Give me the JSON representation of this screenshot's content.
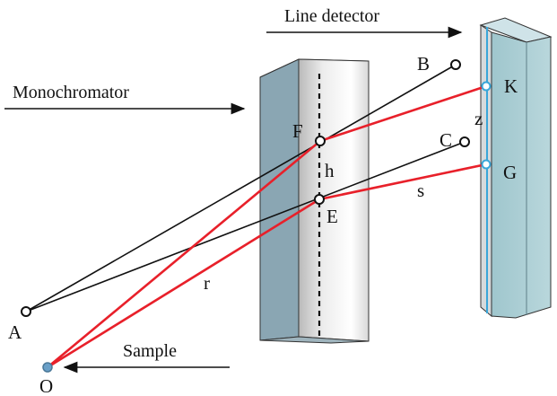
{
  "labels": {
    "line_detector": "Line detector",
    "monochromator": "Monochromator",
    "sample": "Sample",
    "point_a": "A",
    "point_o": "O",
    "point_b": "B",
    "point_c": "C",
    "point_f": "F",
    "point_e": "E",
    "point_h": "h",
    "point_k": "K",
    "point_g": "G",
    "length_z": "z",
    "length_s": "s",
    "length_r": "r"
  },
  "colors": {
    "ray_red": "#e8202a",
    "ray_black": "#111111",
    "block_front": "#d4d4d4",
    "block_side": "#8fa9b5",
    "block_top": "#cfe0e6",
    "detector_face": "#a9cdd4",
    "detector_point": "#39a6d9",
    "sample_point": "#6aa0c8"
  }
}
